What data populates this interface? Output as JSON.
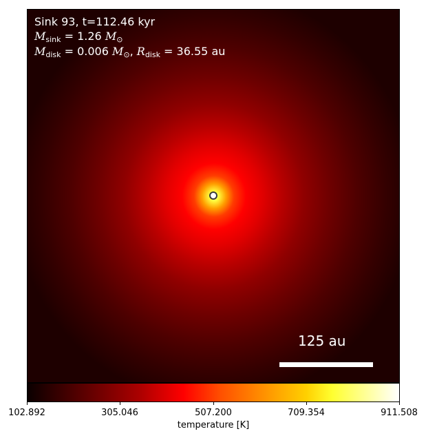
{
  "annotation": {
    "line1": "Sink 93, t=112.46 kyr",
    "sink_mass_symbol": "M",
    "sink_mass_sub": "sink",
    "sink_mass_value": " = 1.26 ",
    "disk_mass_symbol": "M",
    "disk_mass_sub": "disk",
    "disk_mass_value": " = 0.006 ",
    "disk_radius_symbol": "R",
    "disk_radius_sub": "disk",
    "disk_radius_value": " = 36.55 au",
    "solar_mass_symbol": "M",
    "solar_sub": "⊙"
  },
  "scalebar": {
    "label": "125 au"
  },
  "colorbar": {
    "ticks": [
      "102.892",
      "305.046",
      "507.200",
      "709.354",
      "911.508"
    ],
    "label": "temperature [K]",
    "colormap": "hot"
  },
  "colors": {
    "sink_marker_edge": "#3a3a3a",
    "background_dark": "#1e0000",
    "peak": "#ffffd8"
  }
}
